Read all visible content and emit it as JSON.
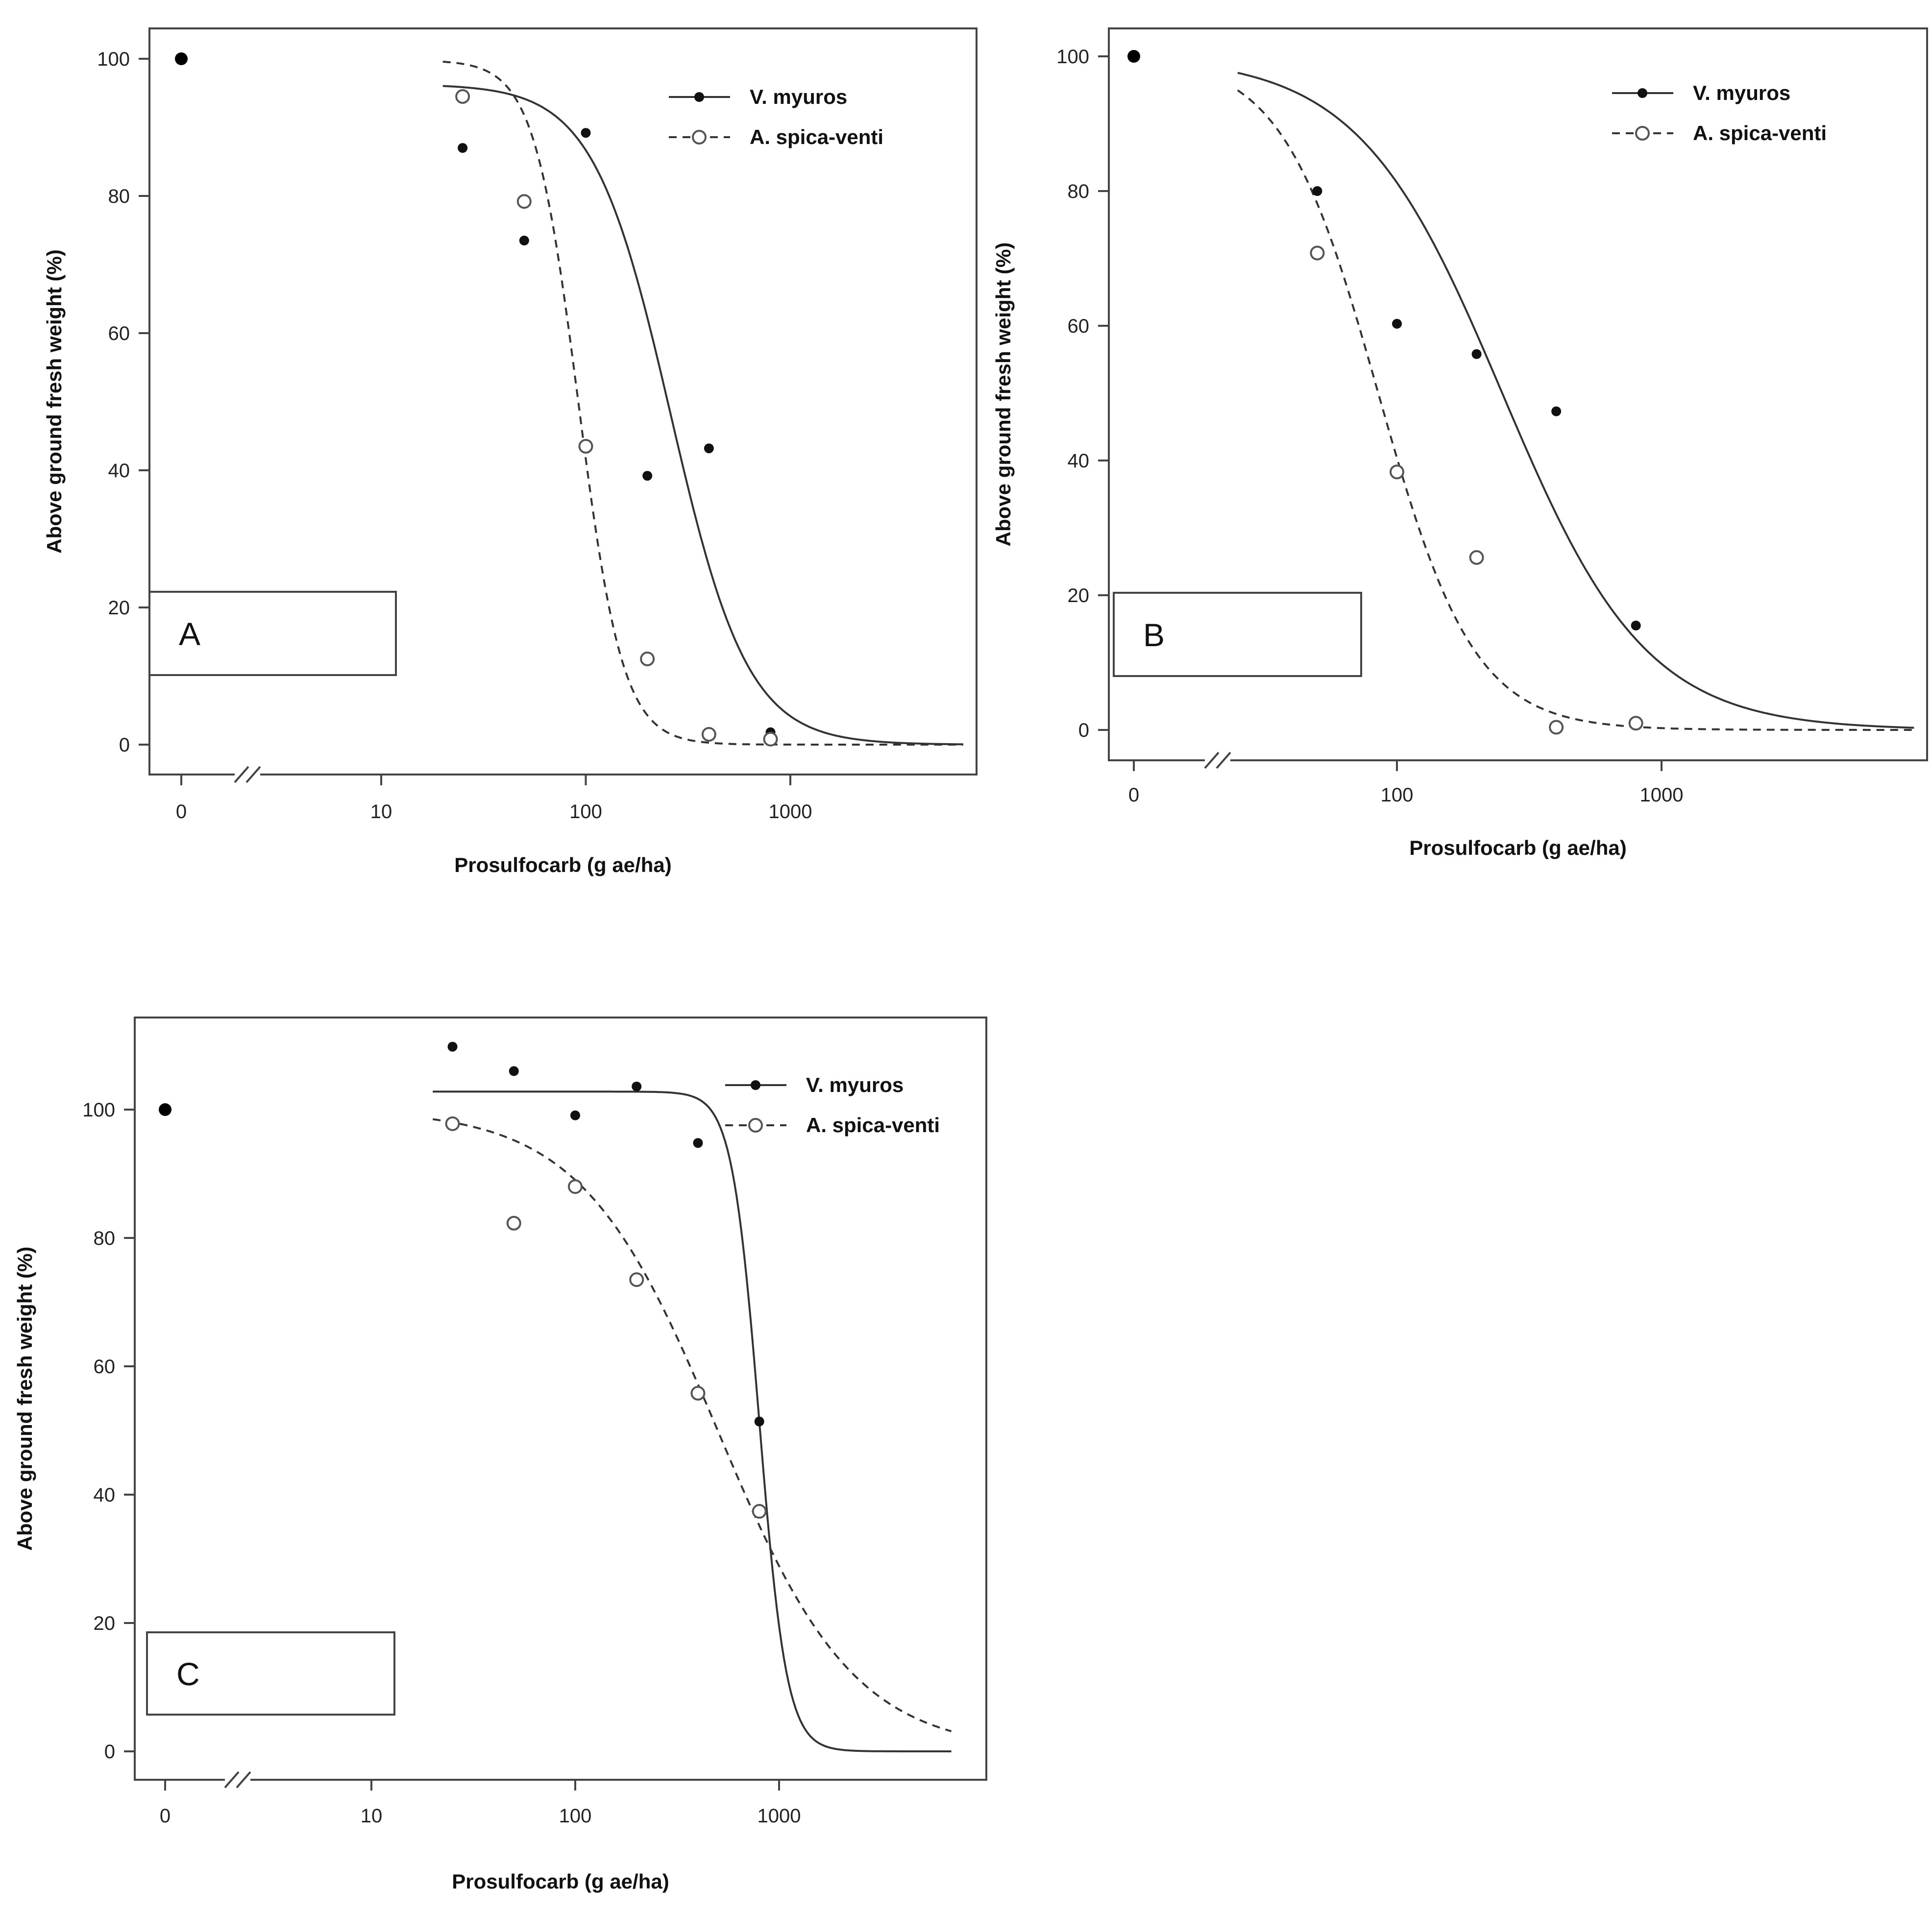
{
  "figure": {
    "background": "#ffffff",
    "line_color": "#333333",
    "open_point_color": "#555555"
  },
  "chart_data": [
    {
      "type": "line",
      "panel_label": "A",
      "xscale": "log",
      "xbreak": true,
      "xlabel": "Prosulfocarb (g ae/ha)",
      "ylabel": "Above ground fresh weight (%)",
      "ylim": [
        -4,
        104
      ],
      "yticks": [
        0,
        20,
        40,
        60,
        80,
        100
      ],
      "xticks": [
        0,
        10,
        100,
        1000
      ],
      "xtick_labels": [
        "0",
        "10",
        "100",
        "1000"
      ],
      "legend": [
        "V. myuros",
        "A. spica-venti"
      ],
      "legend_position": "top-right",
      "control_point": {
        "x": 0,
        "y": 100
      },
      "series": [
        {
          "name": "V. myuros",
          "style": "solid",
          "marker": "filled",
          "points": [
            [
              25,
              87
            ],
            [
              50,
              73.5
            ],
            [
              100,
              89.2
            ],
            [
              200,
              39.2
            ],
            [
              400,
              43.2
            ],
            [
              800,
              1.8
            ]
          ],
          "curve": {
            "upper": 96.3,
            "ed50": 260,
            "slope": 2.3
          }
        },
        {
          "name": "A. spica-venti",
          "style": "dashed",
          "marker": "open",
          "points": [
            [
              25,
              94.5
            ],
            [
              50,
              79.2
            ],
            [
              100,
              43.5
            ],
            [
              200,
              12.5
            ],
            [
              400,
              1.5
            ],
            [
              800,
              0.8
            ]
          ],
          "curve": {
            "upper": 99.8,
            "ed50": 92,
            "slope": 4.0
          }
        }
      ]
    },
    {
      "type": "line",
      "panel_label": "B",
      "xscale": "log",
      "xbreak": true,
      "xlabel": "Prosulfocarb (g ae/ha)",
      "ylabel": "Above ground fresh weight (%)",
      "ylim": [
        -4,
        104
      ],
      "yticks": [
        0,
        20,
        40,
        60,
        80,
        100
      ],
      "xticks": [
        0,
        100,
        1000
      ],
      "xtick_labels": [
        "0",
        "100",
        "1000"
      ],
      "legend": [
        "V. myuros",
        "A. spica-venti"
      ],
      "legend_position": "top-right",
      "control_point": {
        "x": 0,
        "y": 100
      },
      "series": [
        {
          "name": "V. myuros",
          "style": "solid",
          "marker": "filled",
          "points": [
            [
              50,
              80
            ],
            [
              100,
              60.3
            ],
            [
              200,
              55.8
            ],
            [
              400,
              47.3
            ],
            [
              800,
              15.5
            ]
          ],
          "curve": {
            "upper": 100,
            "ed50": 250,
            "slope": 1.6
          }
        },
        {
          "name": "A. spica-venti",
          "style": "dashed",
          "marker": "open",
          "points": [
            [
              50,
              70.8
            ],
            [
              100,
              38.3
            ],
            [
              200,
              25.6
            ],
            [
              400,
              0.4
            ],
            [
              800,
              1.0
            ]
          ],
          "curve": {
            "upper": 100,
            "ed50": 85,
            "slope": 2.4
          }
        }
      ]
    },
    {
      "type": "line",
      "panel_label": "C",
      "xscale": "log",
      "xbreak": true,
      "xlabel": "Prosulfocarb (g ae/ha)",
      "ylabel": "Above ground fresh weight (%)",
      "ylim": [
        -4,
        115
      ],
      "yticks": [
        0,
        20,
        40,
        60,
        80,
        100
      ],
      "xticks": [
        0,
        10,
        100,
        1000
      ],
      "xtick_labels": [
        "0",
        "10",
        "100",
        "1000"
      ],
      "legend": [
        "V. myuros",
        "A. spica-venti"
      ],
      "legend_position": "top-right",
      "control_point": {
        "x": 0,
        "y": 100
      },
      "series": [
        {
          "name": "V. myuros",
          "style": "solid",
          "marker": "filled",
          "points": [
            [
              25,
              109.8
            ],
            [
              50,
              106
            ],
            [
              100,
              99.1
            ],
            [
              200,
              103.6
            ],
            [
              400,
              94.8
            ],
            [
              800,
              51.4
            ]
          ],
          "curve": {
            "upper": 102.8,
            "ed50": 800,
            "slope": 6.5
          }
        },
        {
          "name": "A. spica-venti",
          "style": "dashed",
          "marker": "open",
          "points": [
            [
              25,
              97.8
            ],
            [
              50,
              82.3
            ],
            [
              100,
              88
            ],
            [
              200,
              73.5
            ],
            [
              400,
              55.8
            ],
            [
              800,
              37.4
            ]
          ],
          "curve": {
            "upper": 100,
            "ed50": 500,
            "slope": 1.3
          }
        }
      ]
    }
  ]
}
